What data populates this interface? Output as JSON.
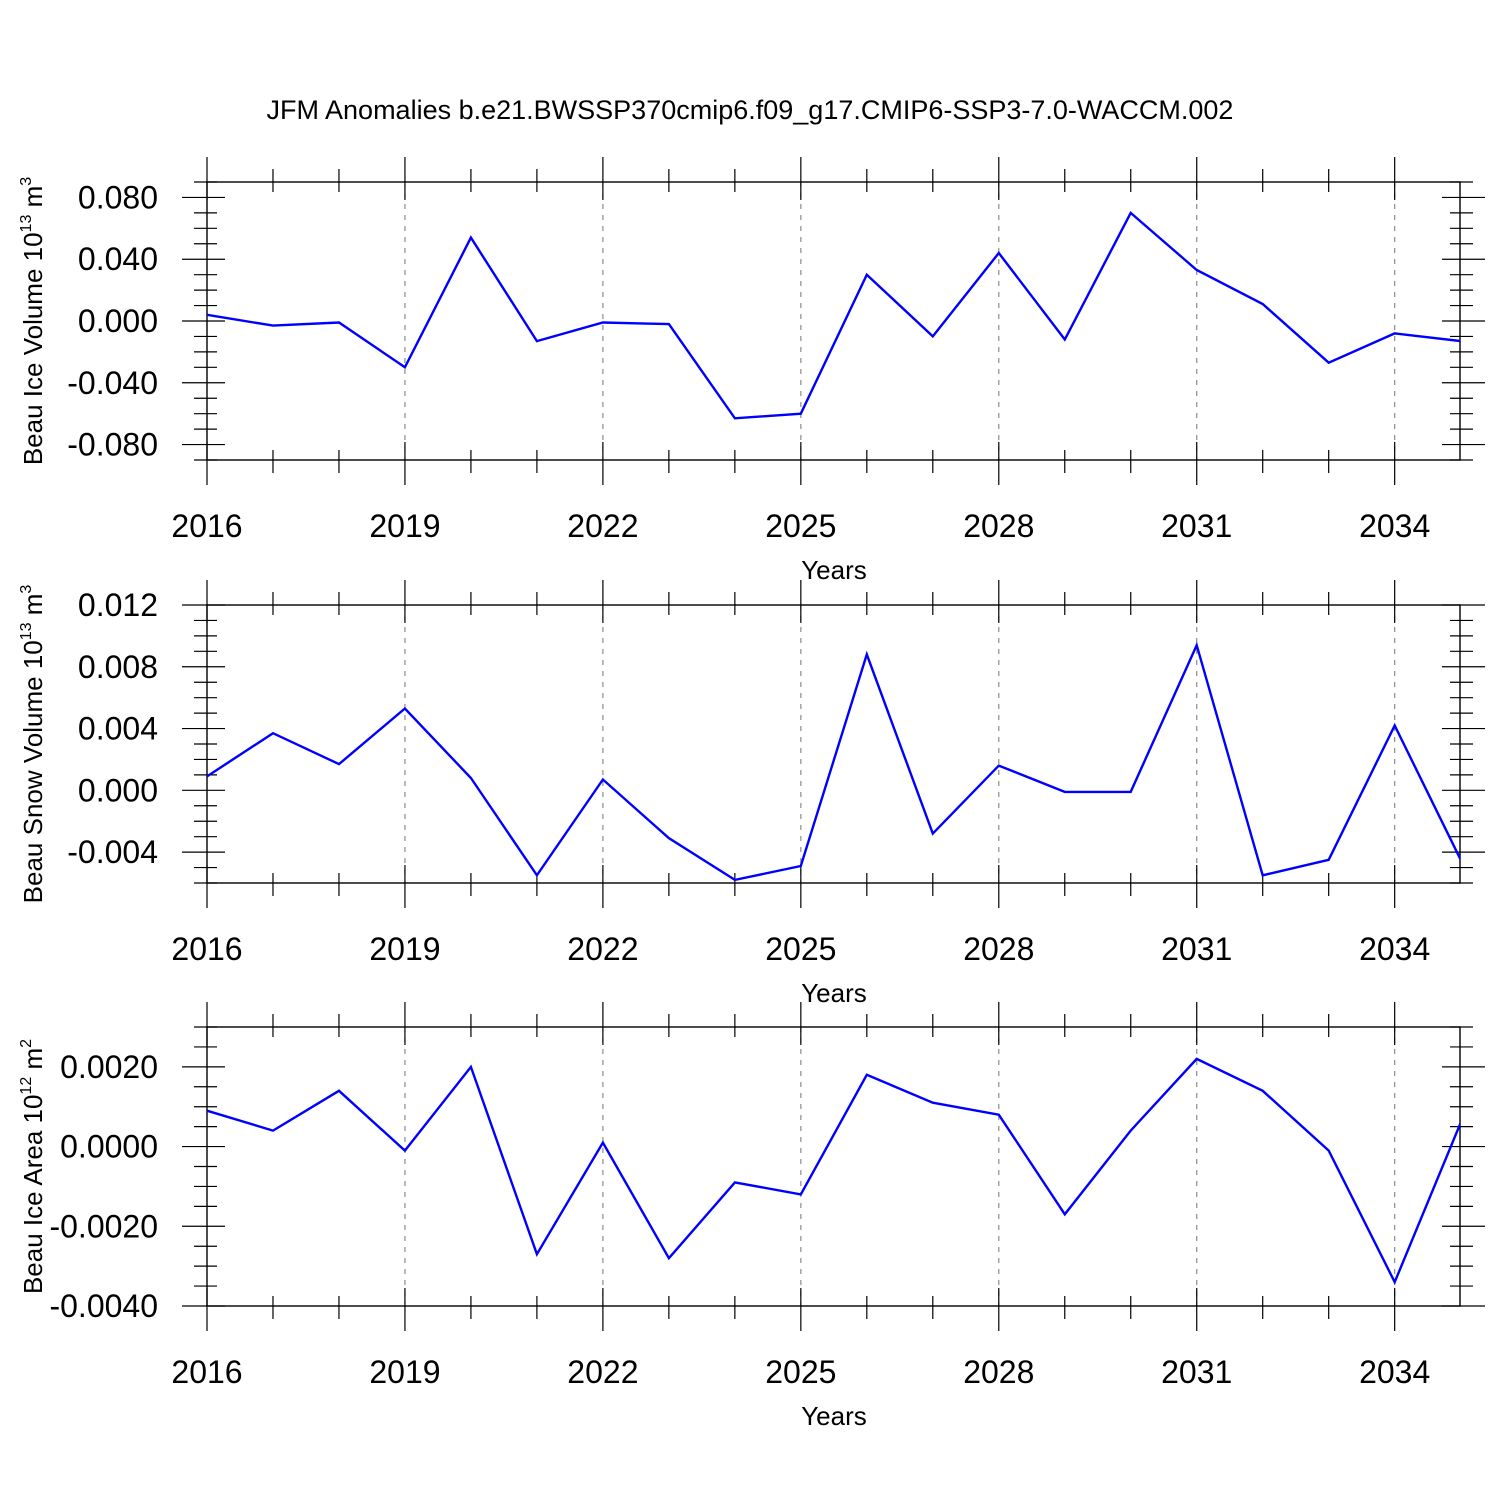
{
  "title": "JFM Anomalies b.e21.BWSSP370cmip6.f09_g17.CMIP6-SSP3-7.0-WACCM.002",
  "chart_data": [
    {
      "type": "line",
      "title": "",
      "xlabel": "Years",
      "ylabel": "Beau Ice Volume 10",
      "ylabel_sup": "13",
      "ylabel_unit": " m",
      "ylabel_unit_sup": "3",
      "xlim": [
        2016,
        2034.99
      ],
      "ylim": [
        -0.09,
        0.09
      ],
      "x_ticks": [
        2016,
        2019,
        2022,
        2025,
        2028,
        2031,
        2034
      ],
      "x_tick_labels": [
        "2016",
        "2019",
        "2022",
        "2025",
        "2028",
        "2031",
        "2034"
      ],
      "y_ticks": [
        -0.08,
        -0.04,
        0.0,
        0.04,
        0.08
      ],
      "y_tick_labels": [
        "-0.080",
        "-0.040",
        "0.000",
        "0.040",
        "0.080"
      ],
      "y_minor_step": 0.01,
      "grid": "vertical-dashed",
      "x": [
        2016,
        2017,
        2018,
        2019,
        2020,
        2021,
        2022,
        2023,
        2024,
        2025,
        2026,
        2027,
        2028,
        2029,
        2030,
        2031,
        2032,
        2033,
        2034,
        2035
      ],
      "values": [
        0.004,
        -0.003,
        -0.001,
        -0.03,
        0.054,
        -0.013,
        -0.001,
        -0.002,
        -0.063,
        -0.06,
        0.03,
        -0.01,
        0.044,
        -0.012,
        0.07,
        0.033,
        0.011,
        -0.027,
        -0.008,
        -0.013
      ],
      "color": "#0000ff"
    },
    {
      "type": "line",
      "title": "",
      "xlabel": "Years",
      "ylabel": "Beau Snow Volume 10",
      "ylabel_sup": "13",
      "ylabel_unit": " m",
      "ylabel_unit_sup": "3",
      "xlim": [
        2016,
        2034.99
      ],
      "ylim": [
        -0.006,
        0.012
      ],
      "x_ticks": [
        2016,
        2019,
        2022,
        2025,
        2028,
        2031,
        2034
      ],
      "x_tick_labels": [
        "2016",
        "2019",
        "2022",
        "2025",
        "2028",
        "2031",
        "2034"
      ],
      "y_ticks": [
        -0.004,
        0.0,
        0.004,
        0.008,
        0.012
      ],
      "y_tick_labels": [
        "-0.004",
        "0.000",
        "0.004",
        "0.008",
        "0.012"
      ],
      "y_minor_step": 0.001,
      "grid": "vertical-dashed",
      "x": [
        2016,
        2017,
        2018,
        2019,
        2020,
        2021,
        2022,
        2023,
        2024,
        2025,
        2026,
        2027,
        2028,
        2029,
        2030,
        2031,
        2032,
        2033,
        2034,
        2035
      ],
      "values": [
        0.0009,
        0.0037,
        0.0017,
        0.0053,
        0.0008,
        -0.0055,
        0.0007,
        -0.0031,
        -0.0058,
        -0.0049,
        0.0088,
        -0.0028,
        0.0016,
        -0.0001,
        -0.0001,
        0.0094,
        -0.0055,
        -0.0045,
        0.0042,
        -0.0045
      ],
      "color": "#0000ff"
    },
    {
      "type": "line",
      "title": "",
      "xlabel": "Years",
      "ylabel": "Beau Ice Area 10",
      "ylabel_sup": "12",
      "ylabel_unit": " m",
      "ylabel_unit_sup": "2",
      "xlim": [
        2016,
        2034.99
      ],
      "ylim": [
        -0.004,
        0.003
      ],
      "x_ticks": [
        2016,
        2019,
        2022,
        2025,
        2028,
        2031,
        2034
      ],
      "x_tick_labels": [
        "2016",
        "2019",
        "2022",
        "2025",
        "2028",
        "2031",
        "2034"
      ],
      "y_ticks": [
        -0.004,
        -0.002,
        0.0,
        0.002
      ],
      "y_tick_labels": [
        "-0.0040",
        "-0.0020",
        "0.0000",
        "0.0020"
      ],
      "y_minor_step": 0.0005,
      "grid": "vertical-dashed",
      "x": [
        2016,
        2017,
        2018,
        2019,
        2020,
        2021,
        2022,
        2023,
        2024,
        2025,
        2026,
        2027,
        2028,
        2029,
        2030,
        2031,
        2032,
        2033,
        2034,
        2035
      ],
      "values": [
        0.0009,
        0.0004,
        0.0014,
        -0.0001,
        0.002,
        -0.0027,
        0.0001,
        -0.0028,
        -0.0009,
        -0.0012,
        0.0018,
        0.0011,
        0.0008,
        -0.0017,
        0.0004,
        0.0022,
        0.0014,
        -0.0001,
        -0.0034,
        0.0006
      ],
      "color": "#0000ff"
    }
  ]
}
